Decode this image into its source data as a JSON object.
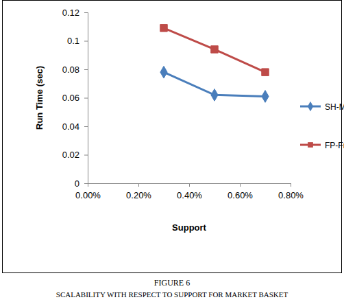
{
  "chart_data": {
    "type": "line",
    "title": "FIGURE 6",
    "subtitle": "SCALABILITY WITH RESPECT TO SUPPORT FOR MARKET BASKET",
    "x_label": "Support",
    "y_label": "Run Time (sec)",
    "x": [
      0.3,
      0.5,
      0.7
    ],
    "series": [
      {
        "name": "SH-Mine",
        "color": "#4a7ebb",
        "marker": "diamond",
        "values": [
          0.078,
          0.062,
          0.061
        ]
      },
      {
        "name": "FP-Frowth",
        "color": "#be4b48",
        "marker": "square",
        "values": [
          0.109,
          0.094,
          0.078
        ]
      }
    ],
    "xlim": [
      0,
      0.8
    ],
    "xticks": [
      {
        "value": 0,
        "label": "0.00%"
      },
      {
        "value": 0.2,
        "label": "0.20%"
      },
      {
        "value": 0.4,
        "label": "0.40%"
      },
      {
        "value": 0.6,
        "label": "0.60%"
      },
      {
        "value": 0.8,
        "label": "0.80%"
      }
    ],
    "ylim": [
      0,
      0.12
    ],
    "yticks": [
      0,
      0.02,
      0.04,
      0.06,
      0.08,
      0.1,
      0.12
    ],
    "grid": false,
    "legend": "right"
  }
}
